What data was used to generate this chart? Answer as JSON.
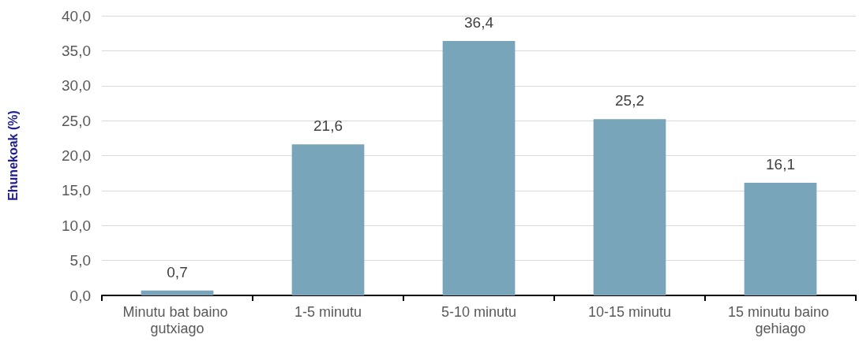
{
  "chart_data": {
    "type": "bar",
    "ylabel": "Ehunekoak (%)",
    "categories": [
      "Minutu bat baino gutxiago",
      "1-5 minutu",
      "5-10 minutu",
      "10-15 minutu",
      "15 minutu baino gehiago"
    ],
    "values": [
      0.7,
      21.6,
      36.4,
      25.2,
      16.1
    ],
    "value_labels": [
      "0,7",
      "21,6",
      "36,4",
      "25,2",
      "16,1"
    ],
    "color": "#78a5b9",
    "ylim": [
      0,
      40
    ],
    "yticks": [
      {
        "value": 0,
        "label": "0,0"
      },
      {
        "value": 5,
        "label": "5,0"
      },
      {
        "value": 10,
        "label": "10,0"
      },
      {
        "value": 15,
        "label": "15,0"
      },
      {
        "value": 20,
        "label": "20,0"
      },
      {
        "value": 25,
        "label": "25,0"
      },
      {
        "value": 30,
        "label": "30,0"
      },
      {
        "value": 35,
        "label": "35,0"
      },
      {
        "value": 40,
        "label": "40,0"
      }
    ],
    "grid": "y"
  }
}
